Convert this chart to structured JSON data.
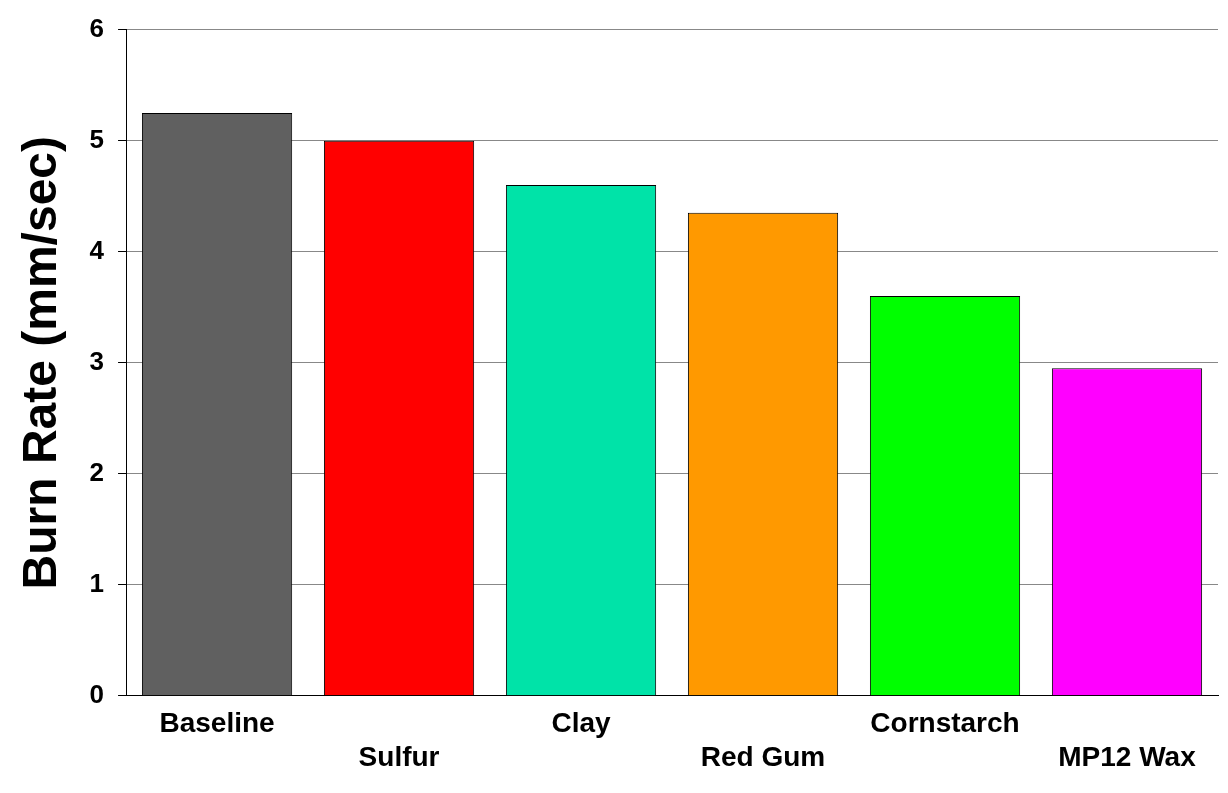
{
  "chart_data": {
    "type": "bar",
    "ylabel": "Burn Rate (mm/sec)",
    "categories": [
      "Baseline",
      "Sulfur",
      "Clay",
      "Red Gum",
      "Cornstarch",
      "MP12 Wax"
    ],
    "values": [
      5.25,
      5.0,
      4.6,
      4.35,
      3.6,
      2.95
    ],
    "colors": [
      "#606060",
      "#ff0000",
      "#00e3a8",
      "#ff9900",
      "#00ff00",
      "#ff00ff"
    ],
    "ylim": [
      0,
      6
    ],
    "yticks": [
      0,
      1,
      2,
      3,
      4,
      5,
      6
    ],
    "grid": "y",
    "legend": false
  }
}
